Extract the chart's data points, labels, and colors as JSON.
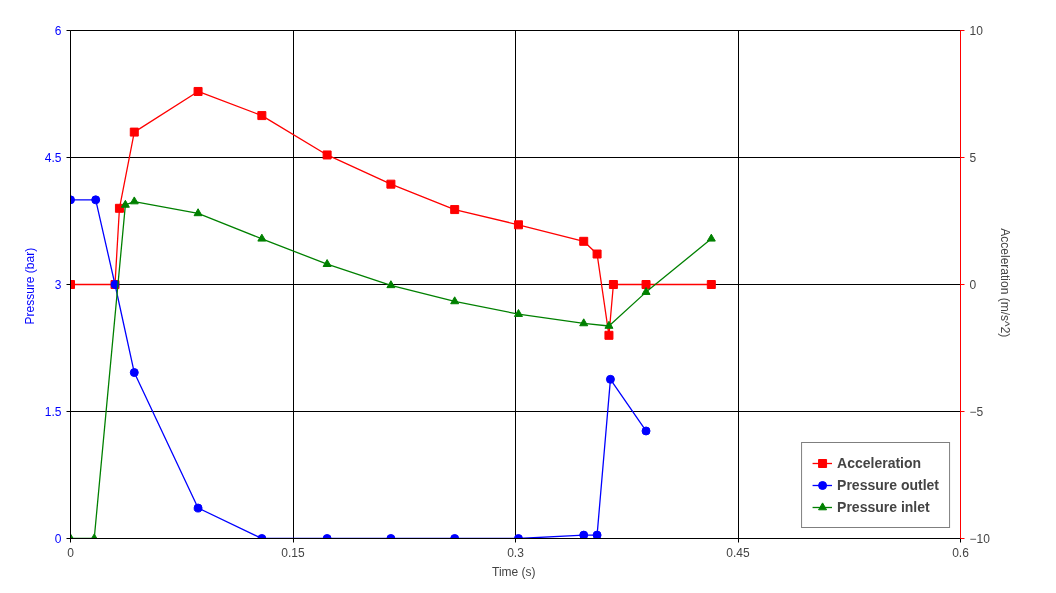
{
  "chart_data": {
    "type": "line",
    "xlabel": "Time  (s)",
    "ylabel": "Pressure  (bar)",
    "y2label": "Acceleration  (m/s^2)",
    "xlim": [
      0,
      0.6
    ],
    "xticks": [
      0,
      0.15,
      0.3,
      0.45,
      0.6
    ],
    "ylim": [
      0,
      6
    ],
    "yticks": [
      0,
      1.5,
      3,
      4.5,
      6
    ],
    "y2lim": [
      -10,
      10
    ],
    "y2ticks": [
      -10,
      -5,
      0,
      5,
      10
    ],
    "grid": true,
    "legend": "bottom right",
    "series": [
      {
        "name": "Acceleration",
        "color": "#ff0000",
        "axis": "y2",
        "marker": "square",
        "x": [
          0,
          0.03,
          0.033,
          0.043,
          0.086,
          0.129,
          0.173,
          0.216,
          0.259,
          0.302,
          0.346,
          0.355,
          0.363,
          0.366,
          0.388,
          0.432
        ],
        "values": [
          0,
          0,
          3,
          6.0,
          7.6,
          6.65,
          5.1,
          3.95,
          2.95,
          2.35,
          1.7,
          1.2,
          -2.0,
          0,
          0,
          0
        ]
      },
      {
        "name": "Pressure outlet",
        "color": "#0000ff",
        "marker": "circle",
        "x": [
          0,
          0.017,
          0.03,
          0.043,
          0.086,
          0.129,
          0.173,
          0.216,
          0.259,
          0.302,
          0.346,
          0.355,
          0.364,
          0.388
        ],
        "values": [
          4.0,
          4.0,
          3.0,
          1.96,
          0.36,
          0,
          0,
          0,
          0,
          0,
          0.04,
          0.04,
          1.88,
          1.27
        ]
      },
      {
        "name": "Pressure inlet",
        "color": "#008000",
        "marker": "triangle",
        "x": [
          0,
          0.016,
          0.037,
          0.043,
          0.086,
          0.129,
          0.173,
          0.216,
          0.259,
          0.302,
          0.346,
          0.363,
          0.388,
          0.432
        ],
        "values": [
          0,
          0,
          3.94,
          3.98,
          3.84,
          3.54,
          3.24,
          2.99,
          2.8,
          2.65,
          2.54,
          2.51,
          2.91,
          3.54
        ]
      }
    ]
  }
}
